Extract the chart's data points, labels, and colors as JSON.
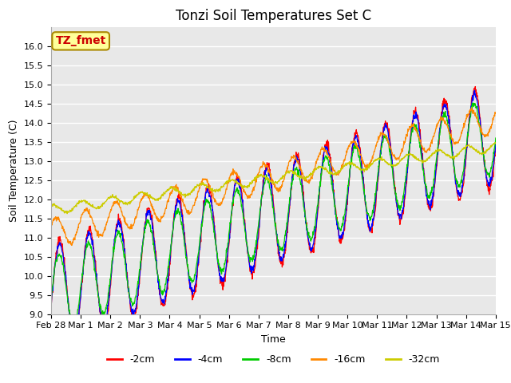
{
  "title": "Tonzi Soil Temperatures Set C",
  "xlabel": "Time",
  "ylabel": "Soil Temperature (C)",
  "annotation": "TZ_fmet",
  "ylim": [
    9.0,
    16.5
  ],
  "yticks": [
    9.0,
    9.5,
    10.0,
    10.5,
    11.0,
    11.5,
    12.0,
    12.5,
    13.0,
    13.5,
    14.0,
    14.5,
    15.0,
    15.5,
    16.0
  ],
  "colors": {
    "-2cm": "#ff0000",
    "-4cm": "#0000ff",
    "-8cm": "#00cc00",
    "-16cm": "#ff8800",
    "-32cm": "#cccc00"
  },
  "legend_labels": [
    "-2cm",
    "-4cm",
    "-8cm",
    "-16cm",
    "-32cm"
  ],
  "plot_bg_color": "#e8e8e8",
  "annotation_bg": "#ffff99",
  "annotation_border": "#aa8800",
  "annotation_text_color": "#cc0000",
  "title_fontsize": 12,
  "axis_label_fontsize": 9,
  "tick_fontsize": 8,
  "legend_fontsize": 9,
  "n_points": 1440,
  "x_start_day": 0,
  "x_end_day": 15,
  "xtick_days": [
    0,
    1,
    2,
    3,
    4,
    5,
    6,
    7,
    8,
    9,
    10,
    11,
    12,
    13,
    14,
    15
  ],
  "xtick_labels": [
    "Feb 28",
    "Mar 1",
    "Mar 2",
    "Mar 3",
    "Mar 4",
    "Mar 5",
    "Mar 6",
    "Mar 7",
    "Mar 8",
    "Mar 9",
    "Mar 10",
    "Mar 11",
    "Mar 12",
    "Mar 13",
    "Mar 14",
    "Mar 15"
  ]
}
